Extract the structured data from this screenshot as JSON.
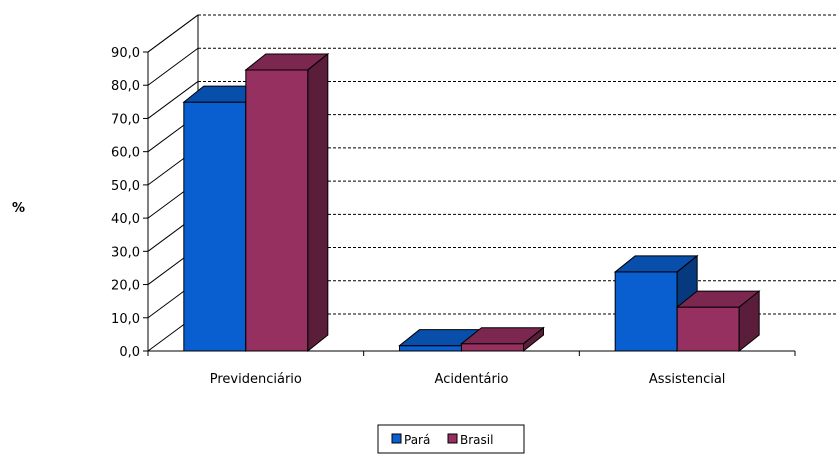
{
  "chart_data": {
    "type": "bar",
    "categories": [
      "Previdenciário",
      "Acidentário",
      "Assistencial"
    ],
    "series": [
      {
        "name": "Pará",
        "values": [
          74.9,
          1.6,
          23.8
        ]
      },
      {
        "name": "Brasil",
        "values": [
          84.6,
          2.2,
          13.2
        ]
      }
    ],
    "ylabel": "%",
    "ylim": [
      0,
      90
    ],
    "yticks": [
      "0,0",
      "10,0",
      "20,0",
      "30,0",
      "40,0",
      "50,0",
      "60,0",
      "70,0",
      "80,0",
      "90,0"
    ],
    "grid": true,
    "style": "3d-column",
    "legend_position": "bottom-center",
    "colors": {
      "Pará": "#0a5fd0",
      "Brasil": "#963060"
    }
  }
}
